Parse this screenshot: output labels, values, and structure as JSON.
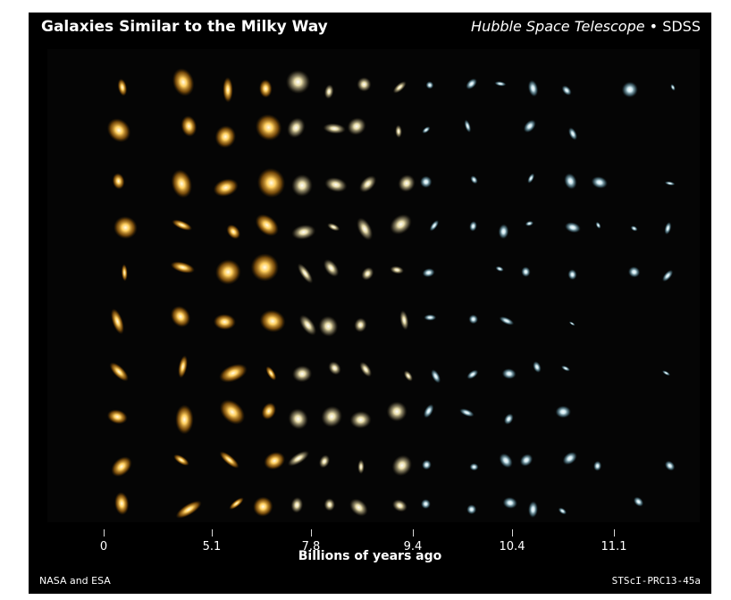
{
  "header": {
    "title": "Galaxies Similar to the Milky Way",
    "credit_italic": "Hubble Space Telescope",
    "credit_separator": " • ",
    "credit_plain": "SDSS"
  },
  "axis": {
    "ticks": [
      "0",
      "5.1",
      "7.8",
      "9.4",
      "10.4",
      "11.1"
    ],
    "label": "Billions of years ago"
  },
  "footer": {
    "credit": "NASA and ESA",
    "release": "STScI-PRC13-45a"
  },
  "colors": {
    "background": "#000000",
    "near_galaxy": "#f0a020",
    "far_galaxy": "#9fc8d8"
  }
}
